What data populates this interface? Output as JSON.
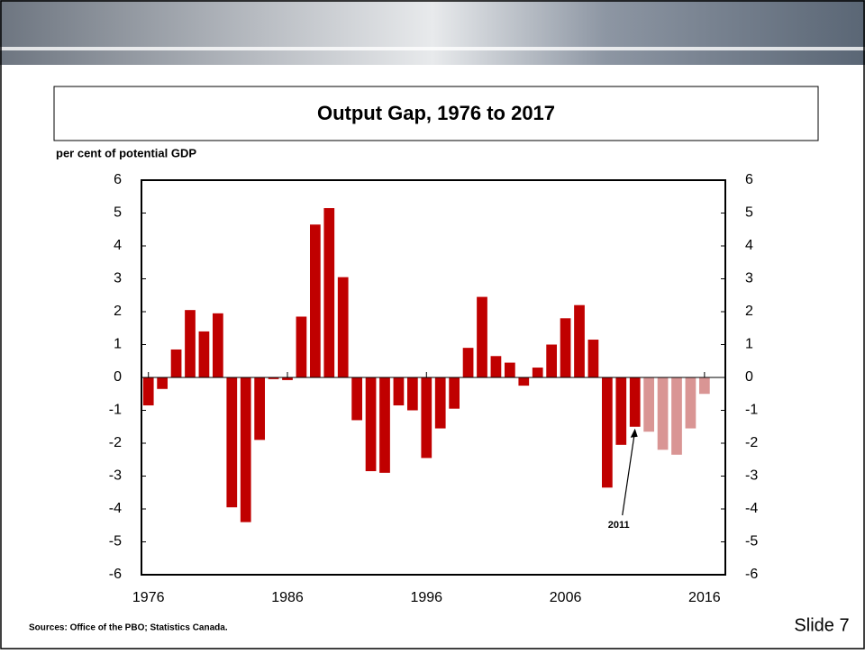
{
  "chart_data": {
    "type": "bar",
    "title": "Output Gap, 1976 to 2017",
    "y_axis_label": "per cent of potential GDP",
    "categories": [
      "1976",
      null,
      null,
      null,
      null,
      null,
      null,
      null,
      null,
      null,
      "1986",
      null,
      null,
      null,
      null,
      null,
      null,
      null,
      null,
      null,
      "1996",
      null,
      null,
      null,
      null,
      null,
      null,
      null,
      null,
      null,
      "2006",
      null,
      null,
      null,
      null,
      null,
      null,
      null,
      null,
      null,
      "2016",
      null
    ],
    "values": [
      -0.85,
      -0.35,
      0.85,
      2.05,
      1.4,
      1.95,
      -3.95,
      -4.4,
      -1.9,
      -0.05,
      -0.08,
      1.85,
      4.65,
      5.15,
      3.05,
      -1.3,
      -2.85,
      -2.9,
      -0.85,
      -1.0,
      -2.45,
      -1.55,
      -0.95,
      0.9,
      2.45,
      0.65,
      0.45,
      -0.25,
      0.3,
      1.0,
      1.8,
      2.2,
      1.15,
      -3.35,
      -2.05,
      -1.5,
      -1.65,
      -2.2,
      -2.35,
      -1.55,
      -0.5,
      null
    ],
    "colors": [
      "#c00000",
      "#c00000",
      "#c00000",
      "#c00000",
      "#c00000",
      "#c00000",
      "#c00000",
      "#c00000",
      "#c00000",
      "#c00000",
      "#c00000",
      "#c00000",
      "#c00000",
      "#c00000",
      "#c00000",
      "#c00000",
      "#c00000",
      "#c00000",
      "#c00000",
      "#c00000",
      "#c00000",
      "#c00000",
      "#c00000",
      "#c00000",
      "#c00000",
      "#c00000",
      "#c00000",
      "#c00000",
      "#c00000",
      "#c00000",
      "#c00000",
      "#c00000",
      "#c00000",
      "#c00000",
      "#c00000",
      "#c00000",
      "#d99594",
      "#d99594",
      "#d99594",
      "#d99594",
      "#d99594",
      "#d99594"
    ],
    "ylim": [
      -6,
      6
    ],
    "yticks": [
      -6,
      -5,
      -4,
      -3,
      -2,
      -1,
      0,
      1,
      2,
      3,
      4,
      5,
      6
    ],
    "annotation": {
      "text": "2011",
      "index": 35
    },
    "source": "Sources:  Office of the PBO; Statistics Canada."
  },
  "footer": {
    "slide": "Slide 7"
  }
}
